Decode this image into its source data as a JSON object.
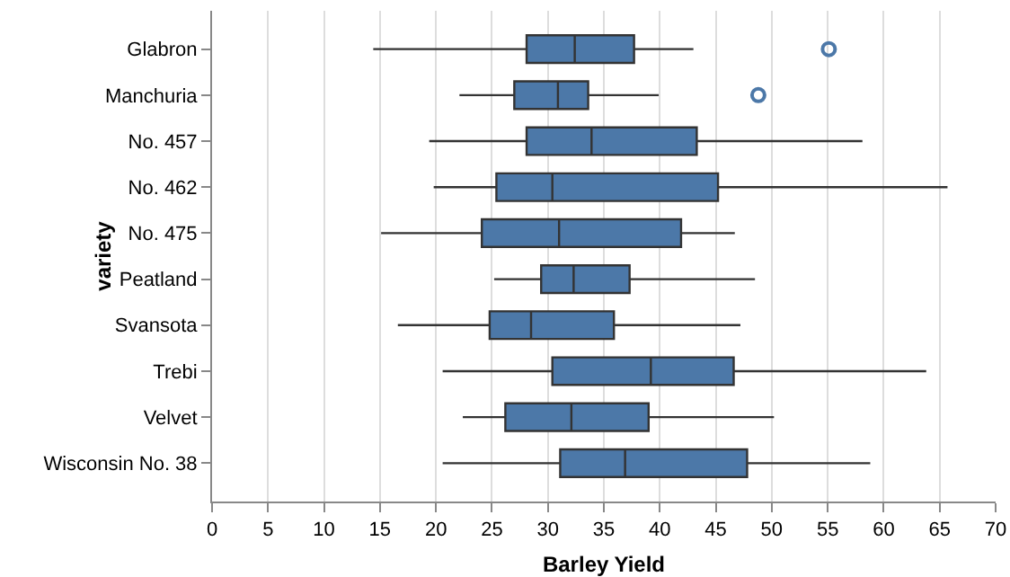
{
  "chart_data": {
    "type": "box",
    "orientation": "horizontal",
    "xlabel": "Barley Yield",
    "ylabel": "variety",
    "categories": [
      "Glabron",
      "Manchuria",
      "No. 457",
      "No. 462",
      "No. 475",
      "Peatland",
      "Svansota",
      "Trebi",
      "Velvet",
      "Wisconsin No. 38"
    ],
    "color": "#4c78a8",
    "boxes": [
      {
        "low": 14.4,
        "q1": 28.1,
        "median": 32.4,
        "q3": 37.7,
        "high": 43.0,
        "outliers": [
          55.1
        ]
      },
      {
        "low": 22.1,
        "q1": 27.0,
        "median": 30.9,
        "q3": 33.6,
        "high": 39.9,
        "outliers": [
          48.8
        ]
      },
      {
        "low": 19.4,
        "q1": 28.1,
        "median": 33.9,
        "q3": 43.3,
        "high": 58.1
      },
      {
        "low": 19.8,
        "q1": 25.4,
        "median": 30.4,
        "q3": 45.2,
        "high": 65.7
      },
      {
        "low": 15.1,
        "q1": 24.1,
        "median": 31.0,
        "q3": 41.9,
        "high": 46.7
      },
      {
        "low": 25.2,
        "q1": 29.4,
        "median": 32.3,
        "q3": 37.3,
        "high": 48.5
      },
      {
        "low": 16.6,
        "q1": 24.8,
        "median": 28.5,
        "q3": 35.9,
        "high": 47.2
      },
      {
        "low": 20.6,
        "q1": 30.4,
        "median": 39.2,
        "q3": 46.6,
        "high": 63.8
      },
      {
        "low": 22.4,
        "q1": 26.2,
        "median": 32.1,
        "q3": 39.0,
        "high": 50.2
      },
      {
        "low": 20.6,
        "q1": 31.1,
        "median": 36.9,
        "q3": 47.8,
        "high": 58.8
      }
    ],
    "xlim": [
      0,
      70
    ],
    "xticks": [
      0,
      5,
      10,
      15,
      20,
      25,
      30,
      35,
      40,
      45,
      50,
      55,
      60,
      65,
      70
    ],
    "grid": "x"
  }
}
